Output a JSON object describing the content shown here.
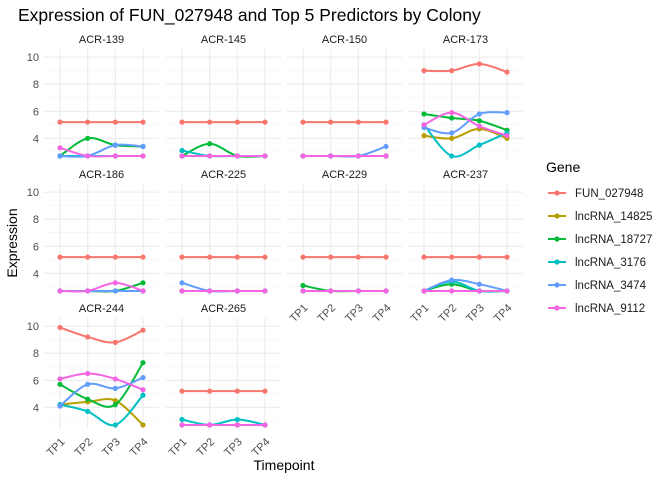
{
  "chart_data": {
    "type": "line",
    "title": "Expression of FUN_027948 and Top 5 Predictors by Colony",
    "xlabel": "Timepoint",
    "ylabel": "Expression",
    "x": [
      "TP1",
      "TP2",
      "TP3",
      "TP4"
    ],
    "ylim": [
      2.4,
      10.6
    ],
    "yticks": [
      4,
      6,
      8,
      10
    ],
    "grid": true,
    "legend": {
      "title": "Gene",
      "position": "right",
      "entries": [
        {
          "name": "FUN_027948",
          "color": "#F8766D"
        },
        {
          "name": "lncRNA_14825",
          "color": "#B79F00"
        },
        {
          "name": "lncRNA_18727",
          "color": "#00BA38"
        },
        {
          "name": "lncRNA_3176",
          "color": "#00BFC4"
        },
        {
          "name": "lncRNA_3474",
          "color": "#619CFF"
        },
        {
          "name": "lncRNA_9112",
          "color": "#F564E3"
        }
      ]
    },
    "panels": [
      {
        "colony": "ACR-139",
        "series": [
          {
            "gene": "FUN_027948",
            "values": [
              5.2,
              5.2,
              5.2,
              5.2
            ]
          },
          {
            "gene": "lncRNA_14825",
            "values": [
              2.7,
              2.7,
              2.7,
              2.7
            ]
          },
          {
            "gene": "lncRNA_18727",
            "values": [
              2.7,
              4.0,
              3.5,
              3.4
            ]
          },
          {
            "gene": "lncRNA_3176",
            "values": [
              2.7,
              2.7,
              2.7,
              2.7
            ]
          },
          {
            "gene": "lncRNA_3474",
            "values": [
              2.7,
              2.7,
              3.5,
              3.4
            ]
          },
          {
            "gene": "lncRNA_9112",
            "values": [
              3.3,
              2.7,
              2.7,
              2.7
            ]
          }
        ]
      },
      {
        "colony": "ACR-145",
        "series": [
          {
            "gene": "FUN_027948",
            "values": [
              5.2,
              5.2,
              5.2,
              5.2
            ]
          },
          {
            "gene": "lncRNA_14825",
            "values": [
              2.7,
              2.7,
              2.7,
              2.7
            ]
          },
          {
            "gene": "lncRNA_18727",
            "values": [
              2.7,
              3.6,
              2.7,
              2.7
            ]
          },
          {
            "gene": "lncRNA_3176",
            "values": [
              3.1,
              2.7,
              2.7,
              2.7
            ]
          },
          {
            "gene": "lncRNA_3474",
            "values": [
              2.7,
              2.7,
              2.7,
              2.7
            ]
          },
          {
            "gene": "lncRNA_9112",
            "values": [
              2.7,
              2.7,
              2.7,
              2.7
            ]
          }
        ]
      },
      {
        "colony": "ACR-150",
        "series": [
          {
            "gene": "FUN_027948",
            "values": [
              5.2,
              5.2,
              5.2,
              5.2
            ]
          },
          {
            "gene": "lncRNA_14825",
            "values": [
              2.7,
              2.7,
              2.7,
              2.7
            ]
          },
          {
            "gene": "lncRNA_18727",
            "values": [
              2.7,
              2.7,
              2.7,
              2.7
            ]
          },
          {
            "gene": "lncRNA_3176",
            "values": [
              2.7,
              2.7,
              2.7,
              2.7
            ]
          },
          {
            "gene": "lncRNA_3474",
            "values": [
              2.7,
              2.7,
              2.7,
              3.4
            ]
          },
          {
            "gene": "lncRNA_9112",
            "values": [
              2.7,
              2.7,
              2.7,
              2.7
            ]
          }
        ]
      },
      {
        "colony": "ACR-173",
        "series": [
          {
            "gene": "FUN_027948",
            "values": [
              9.0,
              9.0,
              9.5,
              8.9
            ]
          },
          {
            "gene": "lncRNA_14825",
            "values": [
              4.2,
              4.0,
              4.7,
              4.0
            ]
          },
          {
            "gene": "lncRNA_18727",
            "values": [
              5.8,
              5.5,
              5.3,
              4.6
            ]
          },
          {
            "gene": "lncRNA_3176",
            "values": [
              5.0,
              2.7,
              3.5,
              4.4
            ]
          },
          {
            "gene": "lncRNA_3474",
            "values": [
              4.8,
              4.4,
              5.8,
              5.9
            ]
          },
          {
            "gene": "lncRNA_9112",
            "values": [
              5.0,
              5.9,
              4.9,
              4.2
            ]
          }
        ]
      },
      {
        "colony": "ACR-186",
        "series": [
          {
            "gene": "FUN_027948",
            "values": [
              5.2,
              5.2,
              5.2,
              5.2
            ]
          },
          {
            "gene": "lncRNA_14825",
            "values": [
              2.7,
              2.7,
              2.7,
              2.7
            ]
          },
          {
            "gene": "lncRNA_18727",
            "values": [
              2.7,
              2.7,
              2.7,
              3.3
            ]
          },
          {
            "gene": "lncRNA_3176",
            "values": [
              2.7,
              2.7,
              2.7,
              2.7
            ]
          },
          {
            "gene": "lncRNA_3474",
            "values": [
              2.7,
              2.7,
              2.7,
              2.7
            ]
          },
          {
            "gene": "lncRNA_9112",
            "values": [
              2.7,
              2.7,
              3.3,
              2.7
            ]
          }
        ]
      },
      {
        "colony": "ACR-225",
        "series": [
          {
            "gene": "FUN_027948",
            "values": [
              5.2,
              5.2,
              5.2,
              5.2
            ]
          },
          {
            "gene": "lncRNA_14825",
            "values": [
              2.7,
              2.7,
              2.7,
              2.7
            ]
          },
          {
            "gene": "lncRNA_18727",
            "values": [
              2.7,
              2.7,
              2.7,
              2.7
            ]
          },
          {
            "gene": "lncRNA_3176",
            "values": [
              2.7,
              2.7,
              2.7,
              2.7
            ]
          },
          {
            "gene": "lncRNA_3474",
            "values": [
              3.3,
              2.7,
              2.7,
              2.7
            ]
          },
          {
            "gene": "lncRNA_9112",
            "values": [
              2.7,
              2.7,
              2.7,
              2.7
            ]
          }
        ]
      },
      {
        "colony": "ACR-229",
        "series": [
          {
            "gene": "FUN_027948",
            "values": [
              5.2,
              5.2,
              5.2,
              5.2
            ]
          },
          {
            "gene": "lncRNA_14825",
            "values": [
              2.7,
              2.7,
              2.7,
              2.7
            ]
          },
          {
            "gene": "lncRNA_18727",
            "values": [
              3.1,
              2.7,
              2.7,
              2.7
            ]
          },
          {
            "gene": "lncRNA_3176",
            "values": [
              2.7,
              2.7,
              2.7,
              2.7
            ]
          },
          {
            "gene": "lncRNA_3474",
            "values": [
              2.7,
              2.7,
              2.7,
              2.7
            ]
          },
          {
            "gene": "lncRNA_9112",
            "values": [
              2.7,
              2.7,
              2.7,
              2.7
            ]
          }
        ]
      },
      {
        "colony": "ACR-237",
        "series": [
          {
            "gene": "FUN_027948",
            "values": [
              5.2,
              5.2,
              5.2,
              5.2
            ]
          },
          {
            "gene": "lncRNA_14825",
            "values": [
              2.7,
              2.7,
              2.7,
              2.7
            ]
          },
          {
            "gene": "lncRNA_18727",
            "values": [
              2.7,
              3.2,
              2.7,
              2.7
            ]
          },
          {
            "gene": "lncRNA_3176",
            "values": [
              2.7,
              3.4,
              2.7,
              2.7
            ]
          },
          {
            "gene": "lncRNA_3474",
            "values": [
              2.7,
              3.5,
              3.2,
              2.7
            ]
          },
          {
            "gene": "lncRNA_9112",
            "values": [
              2.7,
              2.7,
              2.7,
              2.7
            ]
          }
        ]
      },
      {
        "colony": "ACR-244",
        "series": [
          {
            "gene": "FUN_027948",
            "values": [
              9.9,
              9.2,
              8.8,
              9.7
            ]
          },
          {
            "gene": "lncRNA_14825",
            "values": [
              4.2,
              4.4,
              4.5,
              2.7
            ]
          },
          {
            "gene": "lncRNA_18727",
            "values": [
              5.7,
              4.6,
              4.2,
              7.3
            ]
          },
          {
            "gene": "lncRNA_3176",
            "values": [
              4.2,
              3.7,
              2.7,
              4.9
            ]
          },
          {
            "gene": "lncRNA_3474",
            "values": [
              4.1,
              5.7,
              5.4,
              6.2
            ]
          },
          {
            "gene": "lncRNA_9112",
            "values": [
              6.1,
              6.5,
              6.1,
              5.3
            ]
          }
        ]
      },
      {
        "colony": "ACR-265",
        "series": [
          {
            "gene": "FUN_027948",
            "values": [
              5.2,
              5.2,
              5.2,
              5.2
            ]
          },
          {
            "gene": "lncRNA_14825",
            "values": [
              2.7,
              2.7,
              2.7,
              2.7
            ]
          },
          {
            "gene": "lncRNA_18727",
            "values": [
              2.7,
              2.7,
              2.7,
              2.7
            ]
          },
          {
            "gene": "lncRNA_3176",
            "values": [
              3.1,
              2.7,
              3.1,
              2.7
            ]
          },
          {
            "gene": "lncRNA_3474",
            "values": [
              2.7,
              2.7,
              2.7,
              2.7
            ]
          },
          {
            "gene": "lncRNA_9112",
            "values": [
              2.7,
              2.7,
              2.7,
              2.7
            ]
          }
        ]
      }
    ]
  }
}
